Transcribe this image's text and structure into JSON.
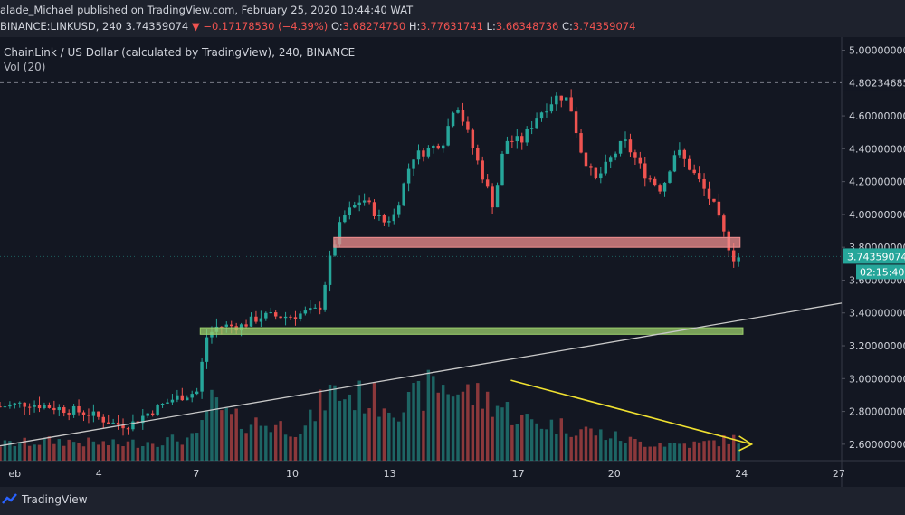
{
  "header": {
    "published": "alade_Michael published on TradingView.com, February 25, 2020 10:44:40 WAT",
    "symbol": "BINANCE:LINKUSD, 240",
    "price": "3.74359074",
    "change": "▼ −0.17178530 (−4.39%)",
    "o_label": "O:",
    "o_value": "3.68274750",
    "h_label": "H:",
    "h_value": "3.77631741",
    "l_label": "L:",
    "l_value": "3.66348736",
    "c_label": "C:",
    "c_value": "3.74359074"
  },
  "legend": {
    "title": "ChainLink / US Dollar (calculated by TradingView), 240, BINANCE",
    "volume": "Vol (20)"
  },
  "footer": {
    "brand": "TradingView"
  },
  "colors": {
    "background": "#131722",
    "up": "#26a69a",
    "down": "#ef5350",
    "axis_text": "#d1d4dc",
    "arrow": "#f0e130",
    "trendline": "#c9c9c9"
  },
  "chart_data": {
    "type": "candlestick",
    "x_ticks": [
      "eb",
      "4",
      "7",
      "10",
      "13",
      "17",
      "20",
      "24",
      "27"
    ],
    "y_ticks": [
      "5.00000000",
      "4.60000000",
      "4.40000000",
      "4.20000000",
      "4.00000000",
      "3.80000000",
      "3.60000000",
      "3.40000000",
      "3.20000000",
      "3.00000000",
      "2.80000000",
      "2.60000000"
    ],
    "ylim": [
      2.5,
      5.08
    ],
    "xlim": [
      0,
      29
    ],
    "dashed_level": {
      "value": 4.80234685,
      "label": "4.80234685"
    },
    "last_price": {
      "value": 3.74359074,
      "label": "3.74359074",
      "countdown": "02:15:40"
    },
    "zones": [
      {
        "name": "resistance",
        "from": 3.8,
        "to": 3.86,
        "x_start": 11.5,
        "x_end": 25.5,
        "color": "#f08f8f"
      },
      {
        "name": "support",
        "from": 3.27,
        "to": 3.31,
        "x_start": 6.9,
        "x_end": 25.6,
        "color": "#9ccf6c"
      }
    ],
    "trendline": {
      "from": [
        0,
        2.59
      ],
      "to": [
        29,
        3.46
      ]
    },
    "volume_arrow": {
      "from": [
        17.6,
        2.99
      ],
      "to": [
        25.9,
        2.6
      ]
    },
    "anchors": [
      [
        0,
        2.83
      ],
      [
        1,
        2.85
      ],
      [
        2,
        2.82
      ],
      [
        3,
        2.79
      ],
      [
        4,
        2.72
      ],
      [
        4.5,
        2.72
      ],
      [
        5,
        2.78
      ],
      [
        6,
        2.88
      ],
      [
        6.8,
        2.92
      ],
      [
        7.1,
        3.25
      ],
      [
        7.5,
        3.32
      ],
      [
        8.3,
        3.32
      ],
      [
        9,
        3.38
      ],
      [
        10,
        3.38
      ],
      [
        11.0,
        3.42
      ],
      [
        11.4,
        3.75
      ],
      [
        11.8,
        3.98
      ],
      [
        12.5,
        4.1
      ],
      [
        13.2,
        3.95
      ],
      [
        13.6,
        4.0
      ],
      [
        14.2,
        4.35
      ],
      [
        14.8,
        4.4
      ],
      [
        15.3,
        4.45
      ],
      [
        15.7,
        4.7
      ],
      [
        16.1,
        4.5
      ],
      [
        16.5,
        4.3
      ],
      [
        17.0,
        4.05
      ],
      [
        17.4,
        4.45
      ],
      [
        18.0,
        4.45
      ],
      [
        18.5,
        4.6
      ],
      [
        19.2,
        4.72
      ],
      [
        19.6,
        4.7
      ],
      [
        20.0,
        4.4
      ],
      [
        20.5,
        4.2
      ],
      [
        21.5,
        4.45
      ],
      [
        22.2,
        4.25
      ],
      [
        22.8,
        4.15
      ],
      [
        23.3,
        4.4
      ],
      [
        24.1,
        4.2
      ],
      [
        24.6,
        4.05
      ],
      [
        25.0,
        3.85
      ],
      [
        25.3,
        3.73
      ],
      [
        25.45,
        3.74
      ]
    ],
    "volume_profile": [
      [
        0,
        0.18
      ],
      [
        2,
        0.22
      ],
      [
        4,
        0.18
      ],
      [
        6.8,
        0.25
      ],
      [
        7.2,
        0.65
      ],
      [
        8,
        0.45
      ],
      [
        10.5,
        0.35
      ],
      [
        11.3,
        0.75
      ],
      [
        12.5,
        0.7
      ],
      [
        14,
        0.6
      ],
      [
        15,
        0.85
      ],
      [
        17,
        0.65
      ],
      [
        18,
        0.45
      ],
      [
        20,
        0.35
      ],
      [
        22,
        0.2
      ],
      [
        24,
        0.18
      ],
      [
        25.5,
        0.25
      ]
    ]
  }
}
